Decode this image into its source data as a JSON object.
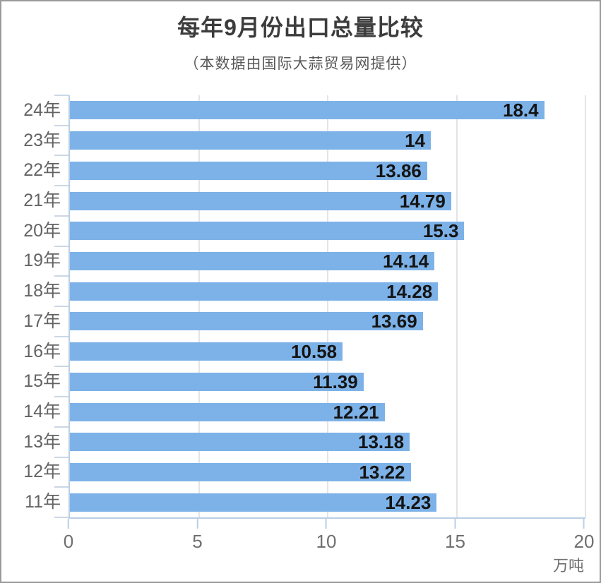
{
  "header": {
    "title": "每年9月份出口总量比较",
    "subtitle": "（本数据由国际大蒜贸易网提供）"
  },
  "chart_data": {
    "type": "bar",
    "orientation": "horizontal",
    "title": "每年9月份出口总量比较",
    "subtitle": "（本数据由国际大蒜贸易网提供）",
    "categories": [
      "24年",
      "23年",
      "22年",
      "21年",
      "20年",
      "19年",
      "18年",
      "17年",
      "16年",
      "15年",
      "14年",
      "13年",
      "12年",
      "11年"
    ],
    "values": [
      18.4,
      14,
      13.86,
      14.79,
      15.3,
      14.14,
      14.28,
      13.69,
      10.58,
      11.39,
      12.21,
      13.18,
      13.22,
      14.23
    ],
    "x_ticks": [
      0,
      5,
      10,
      15,
      20
    ],
    "xlim": [
      0,
      20
    ],
    "x_unit": "万吨",
    "grid": "vertical-gridlines-at-5-10-15-20",
    "legend": "none",
    "value_label_position": "inside-end",
    "colors": {
      "bar": "#7db2e8",
      "axis": "#b9cfe6",
      "gridline": "#e4e4e4",
      "category_tick": "#ccd7e3",
      "title_text": "#3c3c3c",
      "subtitle_text": "#585858",
      "axis_label_text": "#636363",
      "value_label_text": "#141414"
    }
  }
}
